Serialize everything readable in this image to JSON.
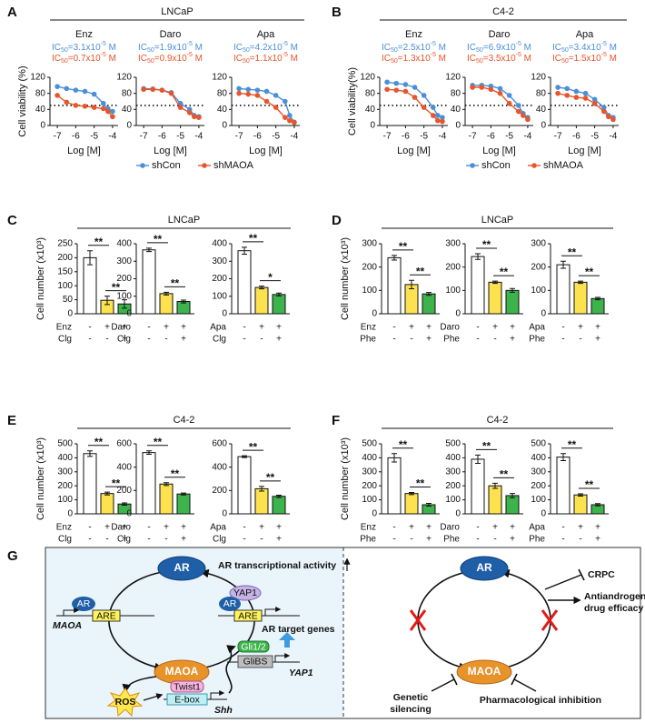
{
  "panels": [
    {
      "letter": "A",
      "title": "LNCaP"
    },
    {
      "letter": "B",
      "title": "C4-2"
    },
    {
      "letter": "C",
      "title": "LNCaP"
    },
    {
      "letter": "D",
      "title": "LNCaP"
    },
    {
      "letter": "E",
      "title": "C4-2"
    },
    {
      "letter": "F",
      "title": "C4-2"
    },
    {
      "letter": "G"
    }
  ],
  "chart_data": [
    {
      "type": "line",
      "title": "Enz",
      "ylabel": "Cell viability (%)",
      "xlabel": "Log [M]",
      "ic50_labels": [
        [
          "IC",
          "50",
          "=3.1x10",
          "-5",
          " M"
        ],
        [
          "IC",
          "50",
          "=0.7x10",
          "-5",
          " M"
        ]
      ],
      "x": [
        -7,
        -6.5,
        -6,
        -5.5,
        -5,
        -4.5,
        -4.25,
        -4
      ],
      "xlim": [
        -7.4,
        -3.7
      ],
      "xticks": [
        -7,
        -6,
        -5,
        -4
      ],
      "ylim": [
        0,
        120
      ],
      "yticks": [
        0,
        40,
        80,
        120
      ],
      "reference_line": 50,
      "series": [
        {
          "name": "shCon",
          "color": "#4a8fd8",
          "values": [
            97,
            92,
            88,
            85,
            78,
            55,
            42,
            35
          ]
        },
        {
          "name": "shMAOA",
          "color": "#e8552a",
          "values": [
            75,
            58,
            50,
            48,
            45,
            42,
            35,
            22
          ]
        }
      ]
    },
    {
      "type": "line",
      "title": "Daro",
      "xlabel": "Log [M]",
      "ic50_labels": [
        [
          "IC",
          "50",
          "=1.9x10",
          "-5",
          " M"
        ],
        [
          "IC",
          "50",
          "=0.9x10",
          "-5",
          " M"
        ]
      ],
      "x": [
        -7,
        -6.5,
        -6,
        -5.5,
        -5,
        -4.5,
        -4.25,
        -4
      ],
      "xlim": [
        -7.4,
        -3.7
      ],
      "xticks": [
        -7,
        -6,
        -5,
        -4
      ],
      "ylim": [
        0,
        120
      ],
      "yticks": [
        0,
        40,
        80,
        120
      ],
      "reference_line": 50,
      "series": [
        {
          "name": "shCon",
          "color": "#4a8fd8",
          "values": [
            92,
            91,
            88,
            82,
            55,
            40,
            25,
            22
          ]
        },
        {
          "name": "shMAOA",
          "color": "#e8552a",
          "values": [
            90,
            90,
            88,
            80,
            45,
            32,
            22,
            20
          ]
        }
      ]
    },
    {
      "type": "line",
      "title": "Apa",
      "xlabel": "Log [M]",
      "ic50_labels": [
        [
          "IC",
          "50",
          "=4.2x10",
          "-5",
          " M"
        ],
        [
          "IC",
          "50",
          "=1.1x10",
          "-5",
          " M"
        ]
      ],
      "x": [
        -7,
        -6.5,
        -6,
        -5.5,
        -5,
        -4.5,
        -4.25,
        -4
      ],
      "xlim": [
        -7.4,
        -3.7
      ],
      "xticks": [
        -7,
        -6,
        -5,
        -4
      ],
      "ylim": [
        0,
        120
      ],
      "yticks": [
        0,
        40,
        80,
        120
      ],
      "reference_line": 50,
      "series": [
        {
          "name": "shCon",
          "color": "#4a8fd8",
          "values": [
            92,
            90,
            88,
            85,
            75,
            60,
            25,
            8
          ]
        },
        {
          "name": "shMAOA",
          "color": "#e8552a",
          "values": [
            80,
            78,
            75,
            60,
            45,
            20,
            12,
            8
          ]
        }
      ]
    },
    {
      "type": "line",
      "title": "Enz",
      "ylabel": "Cell viability(%)",
      "xlabel": "Log [M]",
      "ic50_labels": [
        [
          "IC",
          "50",
          "=2.5x10",
          "-5",
          " M"
        ],
        [
          "IC",
          "50",
          "=1.3x10",
          "-5",
          " M"
        ]
      ],
      "x": [
        -7,
        -6.5,
        -6,
        -5.5,
        -5,
        -4.5,
        -4.25,
        -4
      ],
      "xlim": [
        -7.4,
        -3.7
      ],
      "xticks": [
        -7,
        -6,
        -5,
        -4
      ],
      "ylim": [
        0,
        120
      ],
      "yticks": [
        0,
        40,
        80,
        120
      ],
      "reference_line": 50,
      "series": [
        {
          "name": "shCon",
          "color": "#4a8fd8",
          "values": [
            108,
            105,
            102,
            95,
            75,
            45,
            25,
            20
          ]
        },
        {
          "name": "shMAOA",
          "color": "#e8552a",
          "values": [
            90,
            88,
            85,
            70,
            45,
            25,
            12,
            10
          ]
        }
      ]
    },
    {
      "type": "line",
      "title": "Daro",
      "xlabel": "Log [M]",
      "ic50_labels": [
        [
          "IC",
          "50",
          "=6.9x10",
          "-5",
          " M"
        ],
        [
          "IC",
          "50",
          "=3.5x10",
          "-5",
          " M"
        ]
      ],
      "x": [
        -7,
        -6.5,
        -6,
        -5.5,
        -5,
        -4.5,
        -4.25,
        -4
      ],
      "xlim": [
        -7.4,
        -3.7
      ],
      "xticks": [
        -7,
        -6,
        -5,
        -4
      ],
      "ylim": [
        0,
        120
      ],
      "yticks": [
        0,
        40,
        80,
        120
      ],
      "reference_line": 50,
      "series": [
        {
          "name": "shCon",
          "color": "#4a8fd8",
          "values": [
            100,
            100,
            98,
            92,
            75,
            50,
            30,
            20
          ]
        },
        {
          "name": "shMAOA",
          "color": "#e8552a",
          "values": [
            95,
            95,
            90,
            80,
            55,
            35,
            25,
            15
          ]
        }
      ]
    },
    {
      "type": "line",
      "title": "Apa",
      "xlabel": "Log [M]",
      "ic50_labels": [
        [
          "IC",
          "50",
          "=3.4x10",
          "-5",
          " M"
        ],
        [
          "IC",
          "50",
          "=1.5x10",
          "-5",
          " M"
        ]
      ],
      "x": [
        -7,
        -6.5,
        -6,
        -5.5,
        -5,
        -4.5,
        -4.25,
        -4
      ],
      "xlim": [
        -7.4,
        -3.7
      ],
      "xticks": [
        -7,
        -6,
        -5,
        -4
      ],
      "ylim": [
        0,
        120
      ],
      "yticks": [
        0,
        40,
        80,
        120
      ],
      "reference_line": 50,
      "series": [
        {
          "name": "shCon",
          "color": "#4a8fd8",
          "values": [
            95,
            92,
            85,
            80,
            65,
            45,
            25,
            20
          ]
        },
        {
          "name": "shMAOA",
          "color": "#e8552a",
          "values": [
            80,
            75,
            70,
            68,
            55,
            35,
            22,
            15
          ]
        }
      ]
    },
    {
      "type": "bar",
      "ylabel": "Cell number (x10³)",
      "values": [
        200,
        48,
        35
      ],
      "errors": [
        25,
        15,
        15
      ],
      "colors": [
        "#ffffff",
        "#fde24f",
        "#3cb44b"
      ],
      "ylim": [
        0,
        250
      ],
      "yticks": [
        0,
        50,
        100,
        150,
        200,
        250
      ],
      "conditions": [
        {
          "name": "Enz",
          "marks": [
            "-",
            "+",
            "+"
          ]
        },
        {
          "name": "Clg",
          "marks": [
            "-",
            "-",
            "+"
          ]
        }
      ],
      "significance": [
        "**",
        "**"
      ]
    },
    {
      "type": "bar",
      "values": [
        365,
        115,
        70
      ],
      "errors": [
        10,
        8,
        8
      ],
      "colors": [
        "#ffffff",
        "#fde24f",
        "#3cb44b"
      ],
      "ylim": [
        0,
        400
      ],
      "yticks": [
        0,
        100,
        200,
        300,
        400
      ],
      "conditions": [
        {
          "name": "Daro",
          "marks": [
            "-",
            "+",
            "+"
          ]
        },
        {
          "name": "Clg",
          "marks": [
            "-",
            "-",
            "+"
          ]
        }
      ],
      "significance": [
        "**",
        "**"
      ]
    },
    {
      "type": "bar",
      "values": [
        360,
        150,
        110
      ],
      "errors": [
        20,
        8,
        8
      ],
      "colors": [
        "#ffffff",
        "#fde24f",
        "#3cb44b"
      ],
      "ylim": [
        0,
        400
      ],
      "yticks": [
        0,
        100,
        200,
        300,
        400
      ],
      "conditions": [
        {
          "name": "Apa",
          "marks": [
            "-",
            "+",
            "+"
          ]
        },
        {
          "name": "Clg",
          "marks": [
            "-",
            "-",
            "+"
          ]
        }
      ],
      "significance": [
        "**",
        "*"
      ]
    },
    {
      "type": "bar",
      "ylabel": "Cell number (x10³)",
      "values": [
        240,
        125,
        85
      ],
      "errors": [
        10,
        18,
        6
      ],
      "colors": [
        "#ffffff",
        "#fde24f",
        "#3cb44b"
      ],
      "ylim": [
        0,
        300
      ],
      "yticks": [
        0,
        100,
        200,
        300
      ],
      "conditions": [
        {
          "name": "Enz",
          "marks": [
            "-",
            "+",
            "+"
          ]
        },
        {
          "name": "Phe",
          "marks": [
            "-",
            "-",
            "+"
          ]
        }
      ],
      "significance": [
        "**",
        "**"
      ]
    },
    {
      "type": "bar",
      "values": [
        245,
        135,
        100
      ],
      "errors": [
        12,
        5,
        8
      ],
      "colors": [
        "#ffffff",
        "#fde24f",
        "#3cb44b"
      ],
      "ylim": [
        0,
        300
      ],
      "yticks": [
        0,
        100,
        200,
        300
      ],
      "conditions": [
        {
          "name": "Daro",
          "marks": [
            "-",
            "+",
            "+"
          ]
        },
        {
          "name": "Phe",
          "marks": [
            "-",
            "-",
            "+"
          ]
        }
      ],
      "significance": [
        "**",
        "**"
      ]
    },
    {
      "type": "bar",
      "values": [
        210,
        135,
        65
      ],
      "errors": [
        15,
        5,
        5
      ],
      "colors": [
        "#ffffff",
        "#fde24f",
        "#3cb44b"
      ],
      "ylim": [
        0,
        300
      ],
      "yticks": [
        0,
        100,
        200,
        300
      ],
      "conditions": [
        {
          "name": "Apa",
          "marks": [
            "-",
            "+",
            "+"
          ]
        },
        {
          "name": "Phe",
          "marks": [
            "-",
            "-",
            "+"
          ]
        }
      ],
      "significance": [
        "**",
        "**"
      ]
    },
    {
      "type": "bar",
      "ylabel": "Cell number (x10³)",
      "values": [
        430,
        145,
        70
      ],
      "errors": [
        20,
        10,
        8
      ],
      "colors": [
        "#ffffff",
        "#fde24f",
        "#3cb44b"
      ],
      "ylim": [
        0,
        500
      ],
      "yticks": [
        0,
        100,
        200,
        300,
        400,
        500
      ],
      "conditions": [
        {
          "name": "Enz",
          "marks": [
            "-",
            "+",
            "+"
          ]
        },
        {
          "name": "Clg",
          "marks": [
            "-",
            "-",
            "+"
          ]
        }
      ],
      "significance": [
        "**",
        "**"
      ]
    },
    {
      "type": "bar",
      "values": [
        525,
        255,
        170
      ],
      "errors": [
        15,
        12,
        8
      ],
      "colors": [
        "#ffffff",
        "#fde24f",
        "#3cb44b"
      ],
      "ylim": [
        0,
        600
      ],
      "yticks": [
        0,
        200,
        400,
        600
      ],
      "conditions": [
        {
          "name": "Daro",
          "marks": [
            "-",
            "+",
            "+"
          ]
        },
        {
          "name": "Clg",
          "marks": [
            "-",
            "-",
            "+"
          ]
        }
      ],
      "significance": [
        "**",
        "**"
      ]
    },
    {
      "type": "bar",
      "values": [
        490,
        215,
        150
      ],
      "errors": [
        8,
        20,
        10
      ],
      "colors": [
        "#ffffff",
        "#fde24f",
        "#3cb44b"
      ],
      "ylim": [
        0,
        600
      ],
      "yticks": [
        0,
        200,
        400,
        600
      ],
      "conditions": [
        {
          "name": "Apa",
          "marks": [
            "-",
            "+",
            "+"
          ]
        },
        {
          "name": "Clg",
          "marks": [
            "-",
            "-",
            "+"
          ]
        }
      ],
      "significance": [
        "**",
        "**"
      ]
    },
    {
      "type": "bar",
      "ylabel": "Cell number (x10³)",
      "values": [
        400,
        145,
        65
      ],
      "errors": [
        30,
        8,
        10
      ],
      "colors": [
        "#ffffff",
        "#fde24f",
        "#3cb44b"
      ],
      "ylim": [
        0,
        500
      ],
      "yticks": [
        0,
        100,
        200,
        300,
        400,
        500
      ],
      "conditions": [
        {
          "name": "Enz",
          "marks": [
            "-",
            "+",
            "+"
          ]
        },
        {
          "name": "Phe",
          "marks": [
            "-",
            "-",
            "+"
          ]
        }
      ],
      "significance": [
        "**",
        "**"
      ]
    },
    {
      "type": "bar",
      "values": [
        390,
        200,
        130
      ],
      "errors": [
        30,
        18,
        15
      ],
      "colors": [
        "#ffffff",
        "#fde24f",
        "#3cb44b"
      ],
      "ylim": [
        0,
        500
      ],
      "yticks": [
        0,
        100,
        200,
        300,
        400,
        500
      ],
      "conditions": [
        {
          "name": "Daro",
          "marks": [
            "-",
            "+",
            "+"
          ]
        },
        {
          "name": "Phe",
          "marks": [
            "-",
            "-",
            "+"
          ]
        }
      ],
      "significance": [
        "**",
        "**"
      ]
    },
    {
      "type": "bar",
      "values": [
        405,
        135,
        65
      ],
      "errors": [
        25,
        8,
        8
      ],
      "colors": [
        "#ffffff",
        "#fde24f",
        "#3cb44b"
      ],
      "ylim": [
        0,
        500
      ],
      "yticks": [
        0,
        100,
        200,
        300,
        400,
        500
      ],
      "conditions": [
        {
          "name": "Apa",
          "marks": [
            "-",
            "+",
            "+"
          ]
        },
        {
          "name": "Phe",
          "marks": [
            "-",
            "-",
            "+"
          ]
        }
      ],
      "significance": [
        "**",
        "**"
      ]
    }
  ],
  "diagram": {
    "ar": "AR",
    "maoa": "MAOA",
    "ar_activity": "AR transcriptional activity",
    "ar_small_1": "AR",
    "are_1": "ARE",
    "maoa_gene": "MAOA",
    "yap1_protein": "YAP1",
    "ar_small_2": "AR",
    "are_2": "ARE",
    "target_genes": "AR target genes",
    "gli": "Gli1/2",
    "glibs": "GliBS",
    "yap1_gene": "YAP1",
    "ros": "ROS",
    "twist1": "Twist1",
    "ebox": "E-box",
    "shh": "Shh",
    "ar_right": "AR",
    "maoa_right": "MAOA",
    "crpc": "CRPC",
    "efficacy": [
      "Antiandrogen",
      "drug efficacy"
    ],
    "genetic": [
      "Genetic",
      "silencing"
    ],
    "pharm": "Pharmacological inhibition"
  }
}
